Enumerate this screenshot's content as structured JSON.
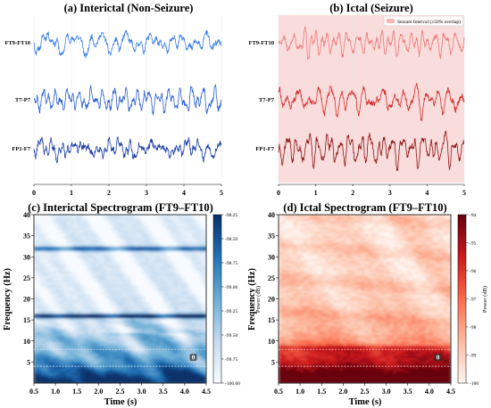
{
  "panels": {
    "a": {
      "title": "(a) Interictal (Non-Seizure)"
    },
    "b": {
      "title": "(b) Ictal (Seizure)"
    },
    "c": {
      "title": "(c) Interictal Spectrogram (FT9–FT10)"
    },
    "d": {
      "title": "(d) Ictal Spectrogram (FT9–FT10)"
    }
  },
  "legend": {
    "label": "Seizure Interval (≥50% overlap)"
  },
  "chart_data": [
    {
      "id": "a",
      "type": "line",
      "title": "(a) Interictal (Non-Seizure)",
      "xlim": [
        0,
        5
      ],
      "xticks": [
        "0",
        "1",
        "2",
        "3",
        "4",
        "5"
      ],
      "grid": true,
      "series": [
        {
          "name": "FT9-FT10",
          "color": "#3d7fe6",
          "seed": 11,
          "amp": 1.0
        },
        {
          "name": "T7-P7",
          "color": "#2a5fd4",
          "seed": 23,
          "amp": 1.0
        },
        {
          "name": "FP1-F7",
          "color": "#1f3fa8",
          "seed": 37,
          "amp": 1.1
        }
      ]
    },
    {
      "id": "b",
      "type": "line",
      "title": "(b) Ictal (Seizure)",
      "xlim": [
        0,
        5
      ],
      "xticks": [
        "0",
        "1",
        "2",
        "3",
        "4",
        "5"
      ],
      "grid": true,
      "shaded_interval": [
        0,
        5
      ],
      "shade_color": "#f9dcdc",
      "series": [
        {
          "name": "FT9-FT10",
          "color": "#ee7a7a",
          "seed": 51,
          "amp": 0.9
        },
        {
          "name": "T7-P7",
          "color": "#d63030",
          "seed": 67,
          "amp": 1.0
        },
        {
          "name": "FP1-F7",
          "color": "#8e1414",
          "seed": 79,
          "amp": 1.1
        }
      ]
    },
    {
      "id": "c",
      "type": "heatmap",
      "title": "(c) Interictal Spectrogram (FT9–FT10)",
      "xlabel": "Time (s)",
      "ylabel": "Frequency (Hz)",
      "xlim": [
        0.5,
        4.5
      ],
      "ylim": [
        0,
        40
      ],
      "xticks": [
        "0.5",
        "1.0",
        "1.5",
        "2.0",
        "2.5",
        "3.0",
        "3.5",
        "4.0",
        "4.5"
      ],
      "yticks": [
        "5",
        "10",
        "15",
        "20",
        "25",
        "30",
        "35",
        "40"
      ],
      "colormap": "Blues",
      "colorbar_label": "Power (dB)",
      "colorbar_range": [
        -100.0,
        -98.25
      ],
      "colorbar_ticks": [
        "-98.25",
        "-98.50",
        "-98.75",
        "-99.00",
        "-99.25",
        "-99.50",
        "-99.75",
        "-100.00"
      ],
      "band_lines": [
        4,
        8
      ],
      "marker_label": "θ",
      "marker": {
        "time": 4.2,
        "freq": 6
      },
      "strong_bands": [
        {
          "freq": 32,
          "level": 0.72
        },
        {
          "freq": 16,
          "level": 0.95
        }
      ]
    },
    {
      "id": "d",
      "type": "heatmap",
      "title": "(d) Ictal Spectrogram (FT9–FT10)",
      "xlabel": "Time (s)",
      "ylabel": "Frequency (Hz)",
      "xlim": [
        0.5,
        4.5
      ],
      "ylim": [
        0,
        40
      ],
      "xticks": [
        "0.5",
        "1.0",
        "1.5",
        "2.0",
        "2.5",
        "3.0",
        "3.5",
        "4.0",
        "4.5"
      ],
      "yticks": [
        "5",
        "10",
        "15",
        "20",
        "25",
        "30",
        "35",
        "40"
      ],
      "colormap": "Reds",
      "colorbar_label": "Power (dB)",
      "colorbar_range": [
        -100,
        -94
      ],
      "colorbar_ticks": [
        "-94",
        "-95",
        "-96",
        "-97",
        "-98",
        "-99",
        "-100"
      ],
      "band_lines": [
        4,
        8
      ],
      "marker_label": "θ",
      "marker": {
        "time": 4.2,
        "freq": 6
      }
    }
  ]
}
